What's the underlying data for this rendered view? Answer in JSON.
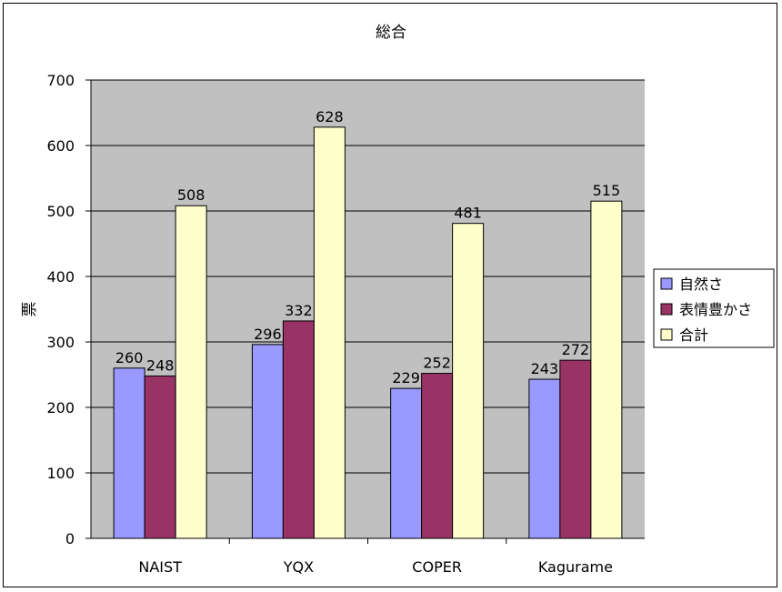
{
  "chart_data": {
    "type": "bar",
    "title": "総合",
    "xlabel": "",
    "ylabel": "票",
    "categories": [
      "NAIST",
      "YQX",
      "COPER",
      "Kagurame"
    ],
    "series": [
      {
        "name": "自然さ",
        "values": [
          260,
          296,
          229,
          243
        ],
        "color": "#9999ff"
      },
      {
        "name": "表情豊かさ",
        "values": [
          248,
          332,
          252,
          272
        ],
        "color": "#993366"
      },
      {
        "name": "合計",
        "values": [
          508,
          628,
          481,
          515
        ],
        "color": "#ffffcc"
      }
    ],
    "ylim": [
      0,
      700
    ],
    "yticks": [
      0,
      100,
      200,
      300,
      400,
      500,
      600,
      700
    ],
    "grid": true,
    "legend": "right",
    "plot_background": "#c0c0c0"
  }
}
